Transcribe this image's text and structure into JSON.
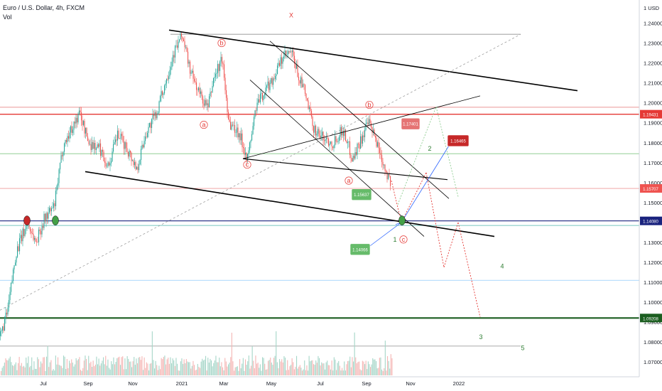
{
  "header": {
    "title": "Euro / U.S. Dollar, 4h, FXCM",
    "indicator": "Vol"
  },
  "colors": {
    "up": "#26a69a",
    "down": "#ef5350",
    "wave_red": "#e53935",
    "wave_green": "#2e7d32",
    "trend_black": "#000000",
    "level_blue": "#1a237e",
    "level_green": "#1b5e20",
    "projection_blue": "#2962ff"
  },
  "chart_data": {
    "type": "candlestick",
    "ylim": [
      1.0626,
      1.2516
    ],
    "y_axis_unit": "USD",
    "y_ticks": [
      "1.24000",
      "1.23000",
      "1.22000",
      "1.21000",
      "1.20000",
      "1.19000",
      "1.18000",
      "1.17000",
      "1.16000",
      "1.15000",
      "1.14000",
      "1.13000",
      "1.12000",
      "1.11000",
      "1.10000",
      "1.09000",
      "1.08000",
      "1.07000"
    ],
    "y_tick_values": [
      1.24,
      1.23,
      1.22,
      1.21,
      1.2,
      1.19,
      1.18,
      1.17,
      1.16,
      1.15,
      1.14,
      1.13,
      1.12,
      1.11,
      1.1,
      1.09,
      1.08,
      1.07
    ],
    "x_ticks": [
      "Jul",
      "Sep",
      "Nov",
      "2021",
      "Mar",
      "May",
      "Jul",
      "Sep",
      "Nov",
      "2022"
    ],
    "x_tick_t": [
      61,
      124,
      187,
      256,
      315,
      382,
      451,
      516,
      578,
      646
    ],
    "price_path": [
      [
        0,
        1.083
      ],
      [
        10,
        1.095
      ],
      [
        22,
        1.125
      ],
      [
        38,
        1.14
      ],
      [
        50,
        1.13
      ],
      [
        62,
        1.142
      ],
      [
        76,
        1.148
      ],
      [
        88,
        1.178
      ],
      [
        100,
        1.187
      ],
      [
        112,
        1.195
      ],
      [
        124,
        1.18
      ],
      [
        140,
        1.177
      ],
      [
        152,
        1.168
      ],
      [
        165,
        1.184
      ],
      [
        180,
        1.176
      ],
      [
        192,
        1.167
      ],
      [
        205,
        1.185
      ],
      [
        220,
        1.195
      ],
      [
        232,
        1.21
      ],
      [
        244,
        1.225
      ],
      [
        256,
        1.234
      ],
      [
        268,
        1.215
      ],
      [
        280,
        1.205
      ],
      [
        292,
        1.197
      ],
      [
        300,
        1.212
      ],
      [
        312,
        1.222
      ],
      [
        322,
        1.19
      ],
      [
        336,
        1.185
      ],
      [
        348,
        1.172
      ],
      [
        360,
        1.198
      ],
      [
        372,
        1.206
      ],
      [
        385,
        1.213
      ],
      [
        398,
        1.223
      ],
      [
        410,
        1.225
      ],
      [
        420,
        1.213
      ],
      [
        428,
        1.206
      ],
      [
        440,
        1.188
      ],
      [
        452,
        1.183
      ],
      [
        468,
        1.18
      ],
      [
        482,
        1.187
      ],
      [
        496,
        1.172
      ],
      [
        508,
        1.182
      ],
      [
        518,
        1.19
      ],
      [
        530,
        1.18
      ],
      [
        542,
        1.167
      ],
      [
        550,
        1.159
      ]
    ],
    "horizontal_levels": [
      {
        "label": "1.19431",
        "value": 1.19431,
        "style": "red"
      },
      {
        "label": "1.15707",
        "value": 1.15707,
        "style": "light-red"
      },
      {
        "label": "1.14080",
        "value": 1.1408,
        "style": "blue"
      },
      {
        "label": "1.09208",
        "value": 1.09208,
        "style": "green"
      }
    ],
    "box_labels": [
      {
        "label": "1.17401",
        "value": 1.17401
      },
      {
        "label": "1.16465",
        "value": 1.16465
      },
      {
        "label": "1.15637",
        "value": 1.15637
      },
      {
        "label": "1.14066",
        "value": 1.14066
      }
    ],
    "wave_labels": {
      "corrective": [
        "X",
        "b",
        "b",
        "a",
        "c",
        "a",
        "c"
      ],
      "impulse": [
        "1",
        "2",
        "3",
        "4",
        "5"
      ]
    },
    "grid": false,
    "legend": "none"
  }
}
